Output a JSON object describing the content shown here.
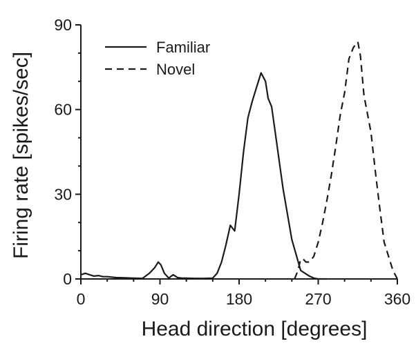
{
  "chart_data": {
    "type": "line",
    "xlabel": "Head direction [degrees]",
    "ylabel": "Firing rate  [spikes/sec]",
    "xlim": [
      0,
      360
    ],
    "ylim": [
      0,
      90
    ],
    "xticks": [
      0,
      90,
      180,
      270,
      360
    ],
    "yticks": [
      0,
      30,
      60,
      90
    ],
    "grid": false,
    "legend_position": "top-left",
    "series": [
      {
        "name": "Familiar",
        "style": "solid",
        "x": [
          0,
          5,
          10,
          15,
          20,
          25,
          30,
          40,
          50,
          60,
          70,
          78,
          84,
          88,
          91,
          95,
          100,
          105,
          110,
          115,
          120,
          130,
          140,
          150,
          155,
          160,
          165,
          170,
          175,
          180,
          185,
          190,
          195,
          200,
          205,
          210,
          213,
          217,
          222,
          230,
          240,
          250,
          260,
          265,
          270,
          275,
          280
        ],
        "y": [
          1.5,
          2,
          1.5,
          1,
          1.2,
          0.8,
          0.8,
          0.5,
          0.4,
          0.3,
          0.2,
          2,
          4,
          6,
          5,
          2,
          0.3,
          1.5,
          0.5,
          0.3,
          0.3,
          0.2,
          0.2,
          0.3,
          2,
          6,
          12,
          19,
          17,
          30,
          45,
          57,
          63,
          68,
          73,
          70,
          64,
          61,
          50,
          32,
          14,
          3,
          1,
          0.3,
          0,
          0,
          0
        ]
      },
      {
        "name": "Novel",
        "style": "dashed",
        "x": [
          243,
          247,
          250,
          253,
          256,
          260,
          265,
          270,
          275,
          280,
          285,
          290,
          295,
          300,
          305,
          310,
          315,
          318,
          322,
          330,
          335,
          340,
          345,
          350,
          355,
          360
        ],
        "y": [
          0,
          3,
          7,
          7,
          6,
          6,
          8,
          13,
          20,
          28,
          37,
          47,
          58,
          66,
          78,
          82,
          84,
          79,
          65,
          52,
          38,
          25,
          13,
          8,
          3,
          0
        ]
      }
    ]
  }
}
